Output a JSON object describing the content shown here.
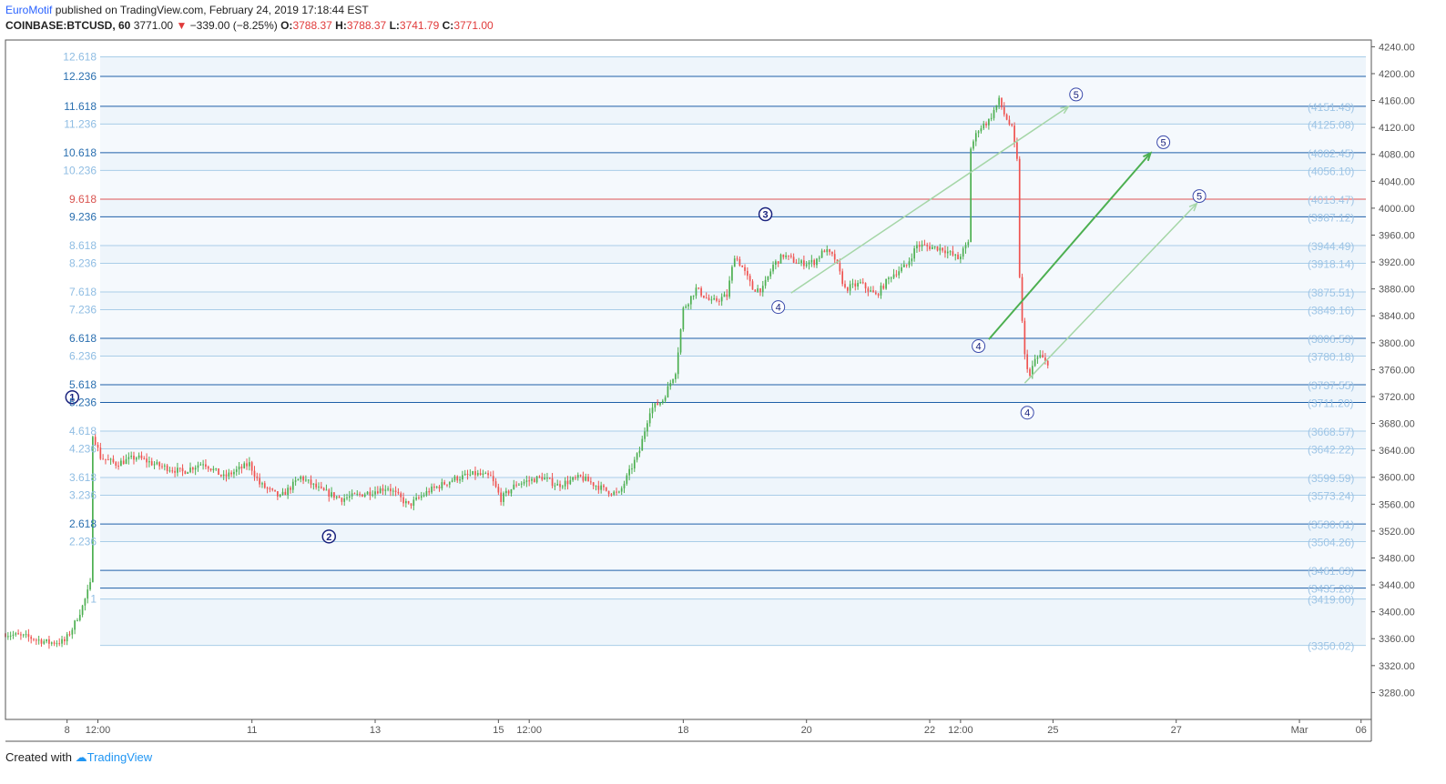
{
  "header": {
    "author": "EuroMotif",
    "published": "published on TradingView.com, February 24, 2019 17:18:44 EST",
    "symbol": "COINBASE:BTCUSD, 60",
    "price": "3771.00",
    "change_arrow": "▼",
    "change": "−339.00 (−8.25%)",
    "open_label": "O:",
    "open": "3788.37",
    "high_label": "H:",
    "high": "3788.37",
    "low_label": "L:",
    "low": "3741.79",
    "close_label": "C:",
    "close": "3771.00"
  },
  "footer": {
    "created_with": "Created with",
    "brand": "TradingView"
  },
  "colors": {
    "up": "#4caf50",
    "down": "#ef5350",
    "fib_line": "#1e5fa8",
    "fib_line_light": "#a9cde8",
    "fib_red": "#e05555",
    "fib_fill": "#f2f8fd",
    "arrow_dark": "#4caf50",
    "arrow_light": "#a5d6a7",
    "wave_label": "#1a237e",
    "price_label": "#9ec5e6",
    "axis_text": "#555555"
  },
  "chart_data": {
    "type": "candlestick",
    "symbol": "COINBASE:BTCUSD",
    "interval": "60",
    "ylim": [
      3240,
      4250
    ],
    "y_ticks": [
      "3280.00",
      "3320.00",
      "3360.00",
      "3400.00",
      "3440.00",
      "3480.00",
      "3520.00",
      "3560.00",
      "3600.00",
      "3640.00",
      "3680.00",
      "3720.00",
      "3760.00",
      "3800.00",
      "3840.00",
      "3880.00",
      "3920.00",
      "3960.00",
      "4000.00",
      "4040.00",
      "4080.00",
      "4120.00",
      "4160.00",
      "4200.00",
      "4240.00"
    ],
    "x_ticks": [
      {
        "label": "8",
        "t": 24
      },
      {
        "label": "12:00",
        "t": 36
      },
      {
        "label": "11",
        "t": 96
      },
      {
        "label": "13",
        "t": 144
      },
      {
        "label": "15",
        "t": 192
      },
      {
        "label": "12:00",
        "t": 204
      },
      {
        "label": "18",
        "t": 264
      },
      {
        "label": "20",
        "t": 312
      },
      {
        "label": "22",
        "t": 360
      },
      {
        "label": "12:00",
        "t": 372
      },
      {
        "label": "25",
        "t": 408
      },
      {
        "label": "27",
        "t": 456
      },
      {
        "label": "Mar",
        "t": 504
      },
      {
        "label": "06",
        "t": 528
      }
    ],
    "fib_levels": [
      {
        "ratio": "12.618",
        "price": 4225.0,
        "price_label": "",
        "style": "light"
      },
      {
        "ratio": "12.236",
        "price": 4196.0,
        "price_label": "",
        "style": "dark"
      },
      {
        "ratio": "11.618",
        "price": 4151.43,
        "price_label": "(4151.43)",
        "style": "dark"
      },
      {
        "ratio": "11.236",
        "price": 4125.08,
        "price_label": "(4125.08)",
        "style": "light"
      },
      {
        "ratio": "10.618",
        "price": 4082.45,
        "price_label": "(4082.45)",
        "style": "dark"
      },
      {
        "ratio": "10.236",
        "price": 4056.1,
        "price_label": "(4056.10)",
        "style": "light"
      },
      {
        "ratio": "9.618",
        "price": 4013.47,
        "price_label": "(4013.47)",
        "style": "red"
      },
      {
        "ratio": "9.236",
        "price": 3987.12,
        "price_label": "(3987.12)",
        "style": "dark"
      },
      {
        "ratio": "8.618",
        "price": 3944.49,
        "price_label": "(3944.49)",
        "style": "light"
      },
      {
        "ratio": "8.236",
        "price": 3918.14,
        "price_label": "(3918.14)",
        "style": "light"
      },
      {
        "ratio": "7.618",
        "price": 3875.51,
        "price_label": "(3875.51)",
        "style": "light"
      },
      {
        "ratio": "7.236",
        "price": 3849.16,
        "price_label": "(3849.16)",
        "style": "light"
      },
      {
        "ratio": "6.618",
        "price": 3806.53,
        "price_label": "(3806.53)",
        "style": "dark"
      },
      {
        "ratio": "6.236",
        "price": 3780.18,
        "price_label": "(3780.18)",
        "style": "light"
      },
      {
        "ratio": "5.618",
        "price": 3737.55,
        "price_label": "(3737.55)",
        "style": "dark"
      },
      {
        "ratio": "5.236",
        "price": 3711.2,
        "price_label": "(3711.20)",
        "style": "dark"
      },
      {
        "ratio": "4.618",
        "price": 3668.57,
        "price_label": "(3668.57)",
        "style": "light"
      },
      {
        "ratio": "4.236",
        "price": 3642.22,
        "price_label": "(3642.22)",
        "style": "light"
      },
      {
        "ratio": "3.618",
        "price": 3599.59,
        "price_label": "(3599.59)",
        "style": "light"
      },
      {
        "ratio": "3.236",
        "price": 3573.24,
        "price_label": "(3573.24)",
        "style": "light"
      },
      {
        "ratio": "2.618",
        "price": 3530.61,
        "price_label": "(3530.61)",
        "style": "dark"
      },
      {
        "ratio": "2.236",
        "price": 3504.26,
        "price_label": "(3504.26)",
        "style": "light"
      },
      {
        "ratio": "",
        "price": 3461.63,
        "price_label": "(3461.63)",
        "style": "dark"
      },
      {
        "ratio": "",
        "price": 3435.28,
        "price_label": "(3435.28)",
        "style": "dark"
      },
      {
        "ratio": "1",
        "price": 3419.0,
        "price_label": "(3419.00)",
        "style": "light"
      },
      {
        "ratio": "",
        "price": 3350.02,
        "price_label": "(3350.02)",
        "style": "light"
      }
    ],
    "wave_labels": [
      {
        "label": "1",
        "t": 26,
        "price": 3719,
        "bold": true
      },
      {
        "label": "2",
        "t": 126,
        "price": 3512,
        "bold": true
      },
      {
        "label": "3",
        "t": 296,
        "price": 3991,
        "bold": true
      },
      {
        "label": "4",
        "t": 301,
        "price": 3853,
        "bold": false
      },
      {
        "label": "4",
        "t": 379,
        "price": 3795,
        "bold": false
      },
      {
        "label": "4",
        "t": 398,
        "price": 3696,
        "bold": false
      },
      {
        "label": "5",
        "t": 417,
        "price": 4169,
        "bold": false
      },
      {
        "label": "5",
        "t": 451,
        "price": 4098,
        "bold": false
      },
      {
        "label": "5",
        "t": 465,
        "price": 4018,
        "bold": false
      }
    ],
    "arrows": [
      {
        "t1": 306,
        "p1": 3874,
        "t2": 414,
        "p2": 4151,
        "style": "light"
      },
      {
        "t1": 383,
        "p1": 3805,
        "t2": 446,
        "p2": 4082,
        "style": "dark"
      },
      {
        "t1": 397,
        "p1": 3740,
        "t2": 464,
        "p2": 4007,
        "style": "light"
      }
    ],
    "ohlc_legend": {
      "open": 3788.37,
      "high": 3788.37,
      "low": 3741.79,
      "close": 3771.0
    }
  }
}
